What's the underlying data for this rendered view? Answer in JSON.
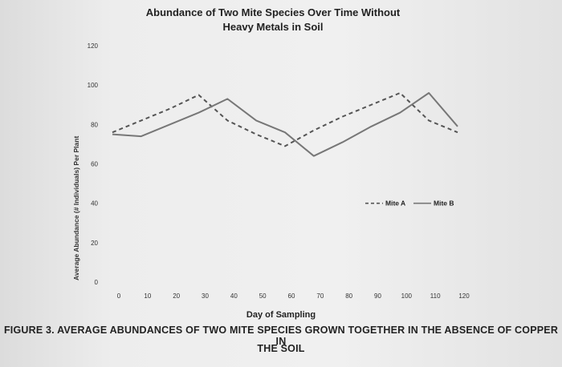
{
  "figure": {
    "title_line1": "Abundance of Two Mite Species Over Time Without",
    "title_line2": "Heavy Metals in Soil",
    "caption_line1": "FIGURE 3. AVERAGE ABUNDANCES OF TWO MITE SPECIES GROWN TOGETHER IN THE ABSENCE OF COPPER IN",
    "caption_line2": "THE SOIL"
  },
  "chart_data": {
    "type": "line",
    "title": "Abundance of Two Mite Species Over Time Without Heavy Metals in Soil",
    "xlabel": "Day of Sampling",
    "ylabel": "Average Abundance (# Individuals) Per Plant",
    "xlim": [
      0,
      120
    ],
    "ylim": [
      0,
      120
    ],
    "xticks": [
      0,
      10,
      20,
      30,
      40,
      50,
      60,
      70,
      80,
      90,
      100,
      110,
      120
    ],
    "yticks": [
      0,
      20,
      40,
      60,
      80,
      100,
      120
    ],
    "grid": false,
    "legend_position": "right",
    "series": [
      {
        "name": "Mite A",
        "style": "dashed",
        "color": "#555555",
        "x": [
          0,
          10,
          20,
          30,
          40,
          50,
          60,
          70,
          80,
          90,
          100,
          110,
          120
        ],
        "y": [
          76,
          82,
          88,
          95,
          82,
          75,
          69,
          77,
          84,
          90,
          96,
          82,
          76
        ]
      },
      {
        "name": "Mite B",
        "style": "solid",
        "color": "#777777",
        "x": [
          0,
          10,
          20,
          30,
          40,
          50,
          60,
          70,
          80,
          90,
          100,
          110,
          120
        ],
        "y": [
          75,
          74,
          80,
          86,
          93,
          82,
          76,
          64,
          71,
          79,
          86,
          96,
          79
        ]
      }
    ]
  }
}
